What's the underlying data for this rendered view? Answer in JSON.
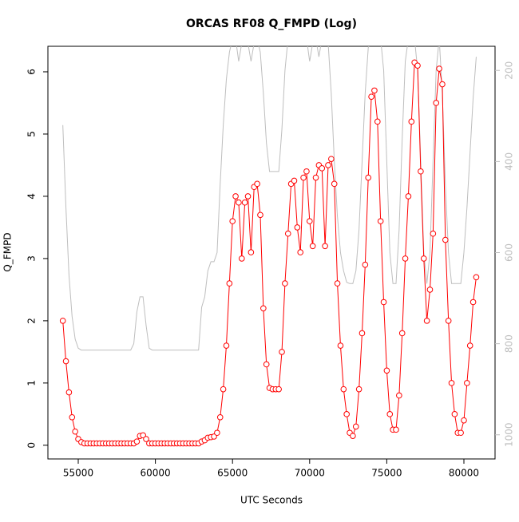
{
  "chart_data": {
    "type": "line",
    "title": "ORCAS RF08 Q_FMPD (Log)",
    "x_label": "UTC Seconds",
    "y_label": "Q_FMPD",
    "x": [
      54000,
      54200,
      54400,
      54600,
      54800,
      55000,
      55200,
      55400,
      55600,
      55800,
      56000,
      56200,
      56400,
      56600,
      56800,
      57000,
      57200,
      57400,
      57600,
      57800,
      58000,
      58200,
      58400,
      58600,
      58800,
      59000,
      59200,
      59400,
      59600,
      59800,
      60000,
      60200,
      60400,
      60600,
      60800,
      61000,
      61200,
      61400,
      61600,
      61800,
      62000,
      62200,
      62400,
      62600,
      62800,
      63000,
      63200,
      63400,
      63600,
      63800,
      64000,
      64200,
      64400,
      64600,
      64800,
      65000,
      65200,
      65400,
      65600,
      65800,
      66000,
      66200,
      66400,
      66600,
      66800,
      67000,
      67200,
      67400,
      67600,
      67800,
      68000,
      68200,
      68400,
      68600,
      68800,
      69000,
      69200,
      69400,
      69600,
      69800,
      70000,
      70200,
      70400,
      70600,
      70800,
      71000,
      71200,
      71400,
      71600,
      71800,
      72000,
      72200,
      72400,
      72600,
      72800,
      73000,
      73200,
      73400,
      73600,
      73800,
      74000,
      74200,
      74400,
      74600,
      74800,
      75000,
      75200,
      75400,
      75600,
      75800,
      76000,
      76200,
      76400,
      76600,
      76800,
      77000,
      77200,
      77400,
      77600,
      77800,
      78000,
      78200,
      78400,
      78600,
      78800,
      79000,
      79200,
      79400,
      79600,
      79800,
      80000,
      80200,
      80400,
      80600,
      80800
    ],
    "series": [
      {
        "color": "#bebebe",
        "axis": "y2",
        "markers": false,
        "values": [
          320,
          500,
          650,
          740,
          790,
          810,
          814,
          814,
          814,
          814,
          814,
          814,
          814,
          814,
          814,
          814,
          814,
          814,
          814,
          814,
          814,
          814,
          814,
          800,
          730,
          697,
          697,
          760,
          810,
          814,
          814,
          814,
          814,
          814,
          814,
          814,
          814,
          814,
          814,
          814,
          814,
          814,
          814,
          814,
          814,
          720,
          697,
          640,
          620,
          620,
          600,
          450,
          320,
          220,
          160,
          130,
          130,
          180,
          140,
          130,
          140,
          180,
          140,
          130,
          160,
          250,
          360,
          422,
          422,
          422,
          422,
          330,
          200,
          130,
          130,
          130,
          130,
          130,
          130,
          130,
          180,
          140,
          130,
          170,
          130,
          130,
          140,
          250,
          400,
          520,
          600,
          640,
          665,
          668,
          668,
          640,
          550,
          400,
          250,
          150,
          130,
          130,
          130,
          130,
          200,
          400,
          600,
          668,
          668,
          550,
          350,
          180,
          130,
          130,
          130,
          200,
          400,
          600,
          668,
          600,
          400,
          200,
          130,
          250,
          450,
          600,
          668,
          668,
          668,
          668,
          600,
          500,
          380,
          260,
          170
        ]
      },
      {
        "color": "#ff0000",
        "markers": true,
        "values": [
          2.0,
          1.35,
          0.85,
          0.45,
          0.22,
          0.1,
          0.05,
          0.03,
          0.03,
          0.03,
          0.03,
          0.03,
          0.03,
          0.03,
          0.03,
          0.03,
          0.03,
          0.03,
          0.03,
          0.03,
          0.03,
          0.03,
          0.03,
          0.03,
          0.06,
          0.15,
          0.16,
          0.1,
          0.03,
          0.03,
          0.03,
          0.03,
          0.03,
          0.03,
          0.03,
          0.03,
          0.03,
          0.03,
          0.03,
          0.03,
          0.03,
          0.03,
          0.03,
          0.03,
          0.03,
          0.06,
          0.08,
          0.12,
          0.13,
          0.14,
          0.2,
          0.45,
          0.9,
          1.6,
          2.6,
          3.6,
          4.0,
          3.9,
          3.0,
          3.9,
          4.0,
          3.1,
          4.15,
          4.2,
          3.7,
          2.2,
          1.3,
          0.92,
          0.9,
          0.9,
          0.9,
          1.5,
          2.6,
          3.4,
          4.2,
          4.25,
          3.5,
          3.1,
          4.3,
          4.4,
          3.6,
          3.2,
          4.3,
          4.5,
          4.45,
          3.2,
          4.5,
          4.6,
          4.2,
          2.6,
          1.6,
          0.9,
          0.5,
          0.2,
          0.15,
          0.3,
          0.9,
          1.8,
          2.9,
          4.3,
          5.6,
          5.7,
          5.2,
          3.6,
          2.3,
          1.2,
          0.5,
          0.25,
          0.25,
          0.8,
          1.8,
          3.0,
          4.0,
          5.2,
          6.15,
          6.1,
          4.4,
          3.0,
          2.0,
          2.5,
          3.4,
          5.5,
          6.05,
          5.8,
          3.3,
          2.0,
          1.0,
          0.5,
          0.2,
          0.2,
          0.4,
          1.0,
          1.6,
          2.3,
          2.7
        ]
      }
    ],
    "xlim": [
      53033,
      82019
    ],
    "xticks": [
      55000,
      60000,
      65000,
      70000,
      75000,
      80000
    ],
    "ylim": [
      -0.22,
      6.41
    ],
    "yticks": [
      0,
      1,
      2,
      3,
      4,
      5,
      6
    ],
    "y2lim": [
      1053,
      147
    ],
    "y2ticks": [
      200,
      400,
      600,
      800,
      1000
    ],
    "y2_color": "#bebebe"
  }
}
